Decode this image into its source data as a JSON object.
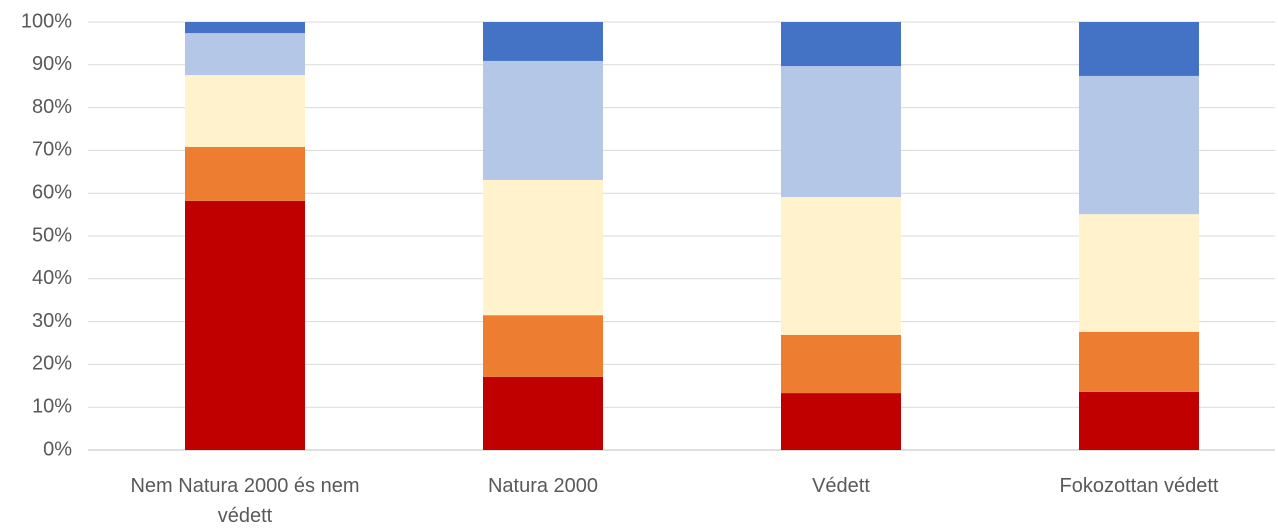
{
  "chart_data": {
    "type": "stacked_bar_100",
    "categories": [
      "Nem Natura 2000 és nem védett",
      "Natura 2000",
      "Védett",
      "Fokozottan védett"
    ],
    "series": [
      {
        "color": "#c00000",
        "values": [
          58.2,
          17.1,
          13.3,
          13.6
        ]
      },
      {
        "color": "#ed7d31",
        "values": [
          12.6,
          14.4,
          13.6,
          14.0
        ]
      },
      {
        "color": "#fff2cc",
        "values": [
          16.8,
          31.6,
          32.2,
          27.5
        ]
      },
      {
        "color": "#b4c7e7",
        "values": [
          9.8,
          27.8,
          30.6,
          32.3
        ]
      },
      {
        "color": "#4472c4",
        "values": [
          2.6,
          9.1,
          10.3,
          12.6
        ]
      }
    ],
    "ylim": [
      0,
      100
    ],
    "yticks": [
      {
        "value": 0,
        "label": "0%"
      },
      {
        "value": 10,
        "label": "10%"
      },
      {
        "value": 20,
        "label": "20%"
      },
      {
        "value": 30,
        "label": "30%"
      },
      {
        "value": 40,
        "label": "40%"
      },
      {
        "value": 50,
        "label": "50%"
      },
      {
        "value": 60,
        "label": "60%"
      },
      {
        "value": 70,
        "label": "70%"
      },
      {
        "value": 80,
        "label": "80%"
      },
      {
        "value": 90,
        "label": "90%"
      },
      {
        "value": 100,
        "label": "100%"
      }
    ],
    "grid": true
  }
}
